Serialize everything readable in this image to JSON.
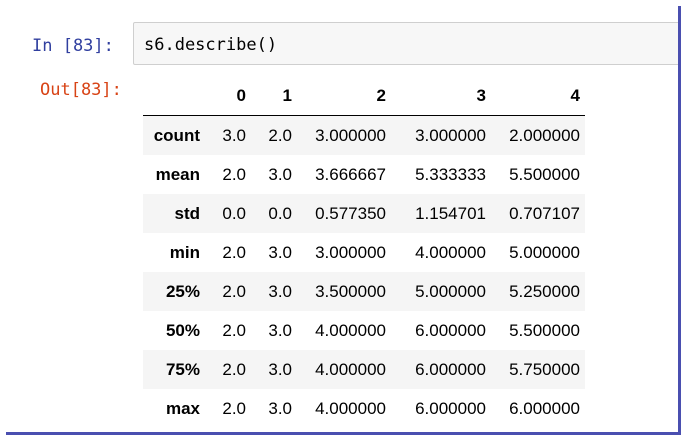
{
  "cell": {
    "input_prompt": "In  [83]:",
    "code": "s6.describe()",
    "output_prompt": "Out[83]:"
  },
  "table": {
    "columns": [
      "0",
      "1",
      "2",
      "3",
      "4"
    ],
    "index": [
      "count",
      "mean",
      "std",
      "min",
      "25%",
      "50%",
      "75%",
      "max"
    ],
    "rows": [
      [
        "3.0",
        "2.0",
        "3.000000",
        "3.000000",
        "2.000000"
      ],
      [
        "2.0",
        "3.0",
        "3.666667",
        "5.333333",
        "5.500000"
      ],
      [
        "0.0",
        "0.0",
        "0.577350",
        "1.154701",
        "0.707107"
      ],
      [
        "2.0",
        "3.0",
        "3.000000",
        "4.000000",
        "5.000000"
      ],
      [
        "2.0",
        "3.0",
        "3.500000",
        "5.000000",
        "5.250000"
      ],
      [
        "2.0",
        "3.0",
        "4.000000",
        "6.000000",
        "5.500000"
      ],
      [
        "2.0",
        "3.0",
        "4.000000",
        "6.000000",
        "5.750000"
      ],
      [
        "2.0",
        "3.0",
        "4.000000",
        "6.000000",
        "6.000000"
      ]
    ]
  }
}
